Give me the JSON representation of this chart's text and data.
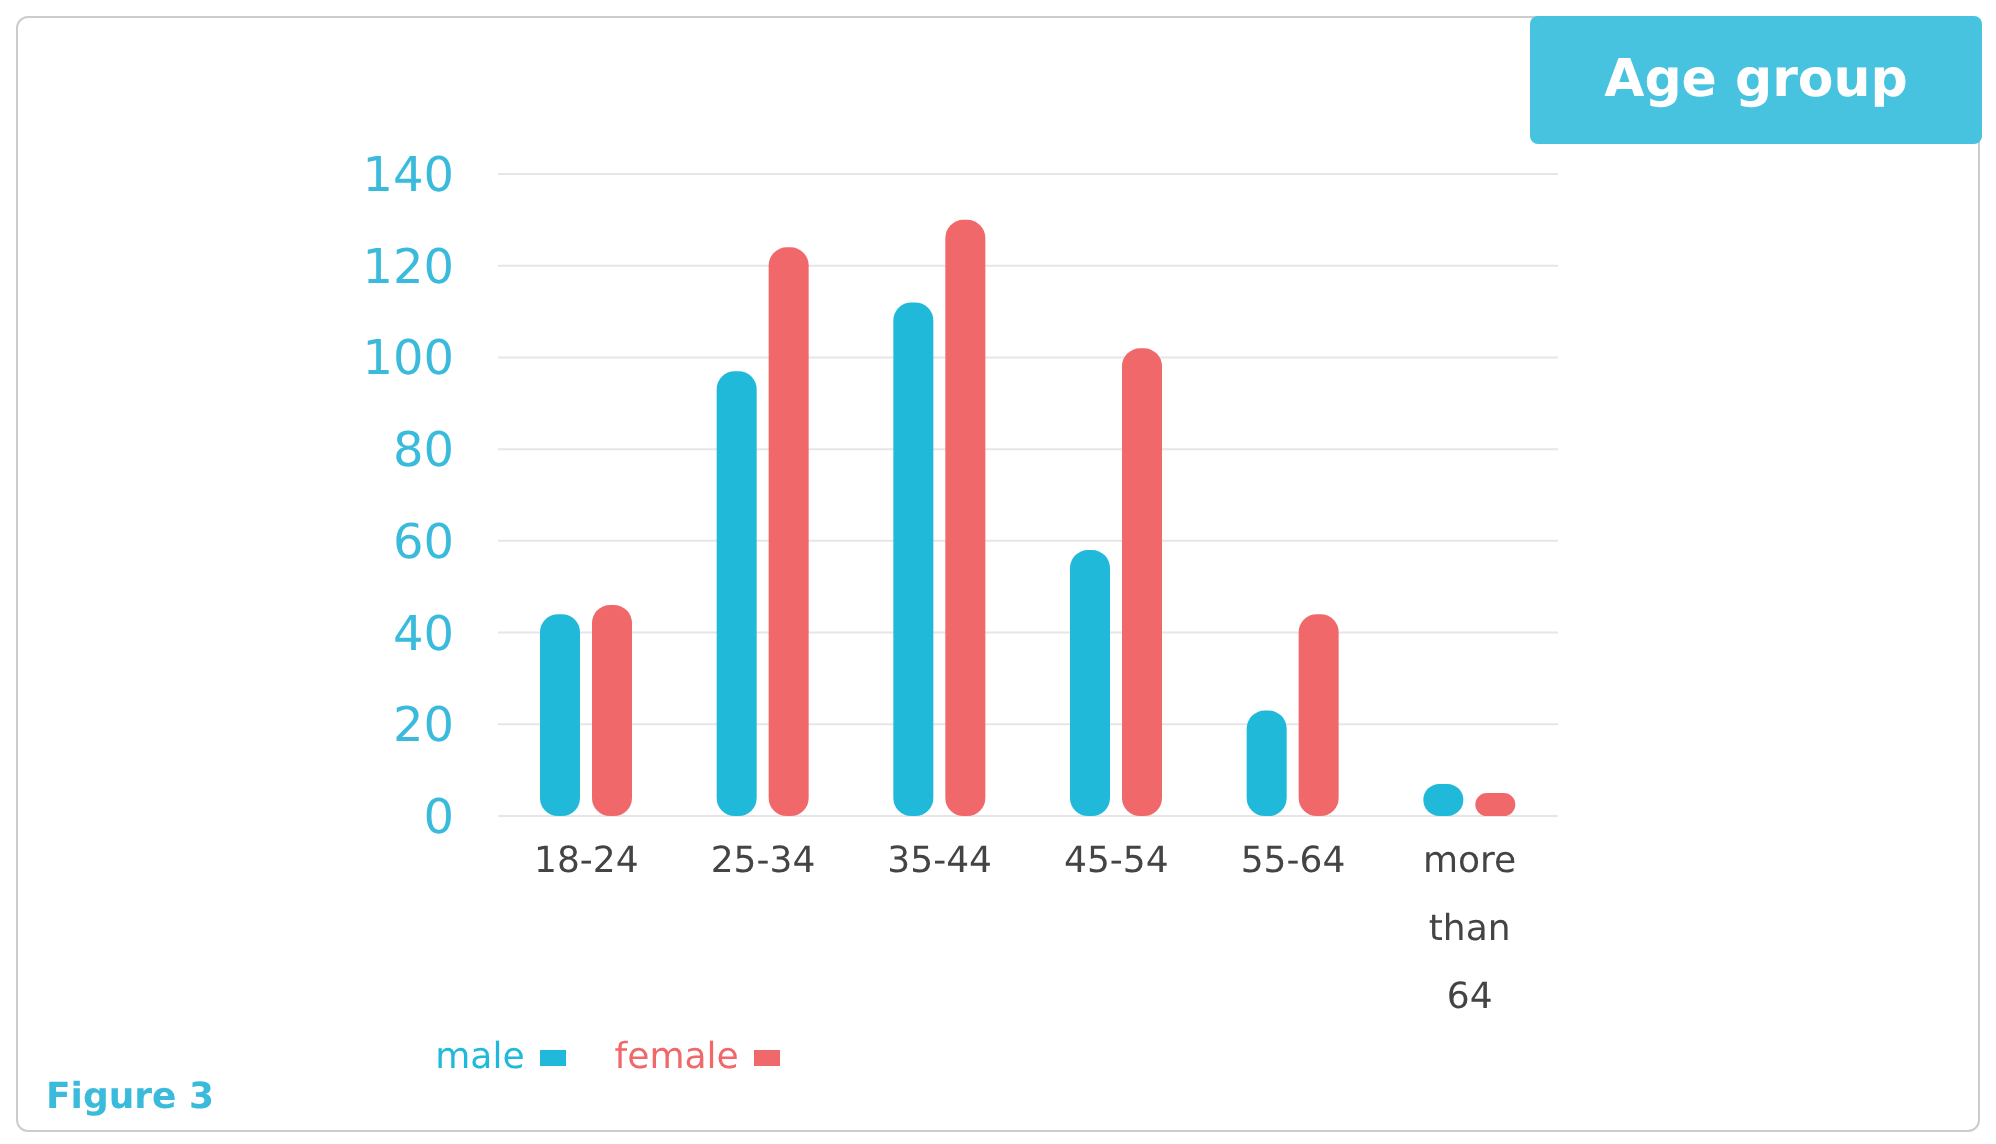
{
  "chart_data": {
    "type": "bar",
    "title": "Age group",
    "categories": [
      "18-24",
      "25-34",
      "35-44",
      "45-54",
      "55-64",
      "more than 64"
    ],
    "series": [
      {
        "name": "male",
        "color": "#20b9da",
        "values": [
          44,
          97,
          112,
          58,
          23,
          7
        ]
      },
      {
        "name": "female",
        "color": "#f0686a",
        "values": [
          46,
          124,
          130,
          102,
          44,
          5
        ]
      }
    ],
    "ylim": [
      0,
      140
    ],
    "yticks": [
      0,
      20,
      40,
      60,
      80,
      100,
      120,
      140
    ],
    "grid": "y",
    "legend": "bottom",
    "annotations": [
      "Figure 3"
    ]
  }
}
